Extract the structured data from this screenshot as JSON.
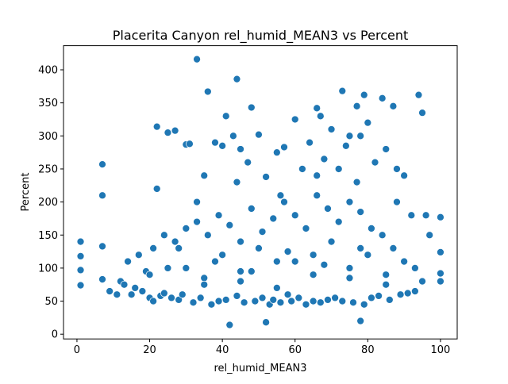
{
  "chart_data": {
    "type": "scatter",
    "title": "Placerita Canyon rel_humid_MEAN3 vs Percent",
    "x_label": "rel_humid_MEAN3",
    "y_label": "Percent",
    "color": "#1f77b4",
    "xlim": [
      -3.7,
      104.6
    ],
    "ylim": [
      -7.2,
      436.5
    ],
    "xticks": [
      0,
      20,
      40,
      60,
      80,
      100
    ],
    "yticks": [
      0,
      50,
      100,
      150,
      200,
      250,
      300,
      350,
      400
    ],
    "x": [
      1,
      1,
      1,
      1,
      7,
      7,
      7,
      7,
      33,
      44,
      36,
      73,
      94,
      79,
      100,
      100,
      100,
      100,
      42,
      52,
      78,
      22,
      25,
      27,
      30,
      31,
      35,
      38,
      40,
      41,
      43,
      45,
      47,
      48,
      50,
      52,
      55,
      57,
      60,
      62,
      64,
      66,
      67,
      68,
      70,
      72,
      74,
      75,
      77,
      78,
      80,
      82,
      84,
      85,
      87,
      88,
      90,
      92,
      95,
      96,
      15,
      16,
      18,
      20,
      21,
      23,
      24,
      26,
      28,
      29,
      32,
      34,
      37,
      39,
      41,
      44,
      46,
      49,
      51,
      53,
      54,
      56,
      58,
      59,
      61,
      63,
      65,
      67,
      69,
      71,
      73,
      76,
      79,
      81,
      83,
      86,
      89,
      91,
      93,
      14,
      17,
      19,
      21,
      24,
      27,
      30,
      33,
      36,
      39,
      42,
      45,
      48,
      51,
      54,
      57,
      60,
      63,
      66,
      69,
      72,
      75,
      78,
      81,
      84,
      87,
      90,
      93,
      12,
      20,
      25,
      35,
      45,
      55,
      65,
      75,
      85,
      95,
      22,
      33,
      44,
      56,
      66,
      77,
      88,
      97,
      9,
      11,
      13,
      30,
      40,
      50,
      60,
      70,
      80,
      35,
      45,
      55,
      65,
      75,
      85,
      28,
      38,
      48,
      58,
      68,
      78
    ],
    "y": [
      140,
      118,
      97,
      74,
      257,
      210,
      133,
      83,
      416,
      386,
      367,
      368,
      362,
      362,
      177,
      124,
      92,
      80,
      14,
      18,
      20,
      314,
      305,
      308,
      287,
      288,
      240,
      290,
      285,
      330,
      300,
      280,
      260,
      343,
      302,
      238,
      275,
      283,
      325,
      250,
      290,
      342,
      330,
      265,
      310,
      250,
      285,
      300,
      345,
      300,
      320,
      260,
      357,
      280,
      345,
      250,
      240,
      180,
      335,
      180,
      60,
      70,
      65,
      55,
      50,
      58,
      62,
      55,
      52,
      60,
      48,
      55,
      45,
      50,
      52,
      58,
      48,
      50,
      55,
      45,
      52,
      48,
      60,
      50,
      55,
      45,
      50,
      48,
      52,
      55,
      50,
      48,
      45,
      55,
      58,
      52,
      60,
      62,
      65,
      110,
      120,
      95,
      130,
      150,
      140,
      160,
      170,
      150,
      180,
      165,
      140,
      190,
      155,
      175,
      200,
      180,
      160,
      210,
      190,
      170,
      200,
      185,
      160,
      150,
      130,
      110,
      100,
      80,
      90,
      100,
      85,
      95,
      110,
      120,
      100,
      90,
      80,
      220,
      200,
      230,
      210,
      240,
      230,
      200,
      150,
      65,
      60,
      75,
      100,
      120,
      130,
      110,
      140,
      120,
      75,
      80,
      70,
      90,
      85,
      75,
      130,
      110,
      95,
      125,
      105,
      130
    ]
  }
}
